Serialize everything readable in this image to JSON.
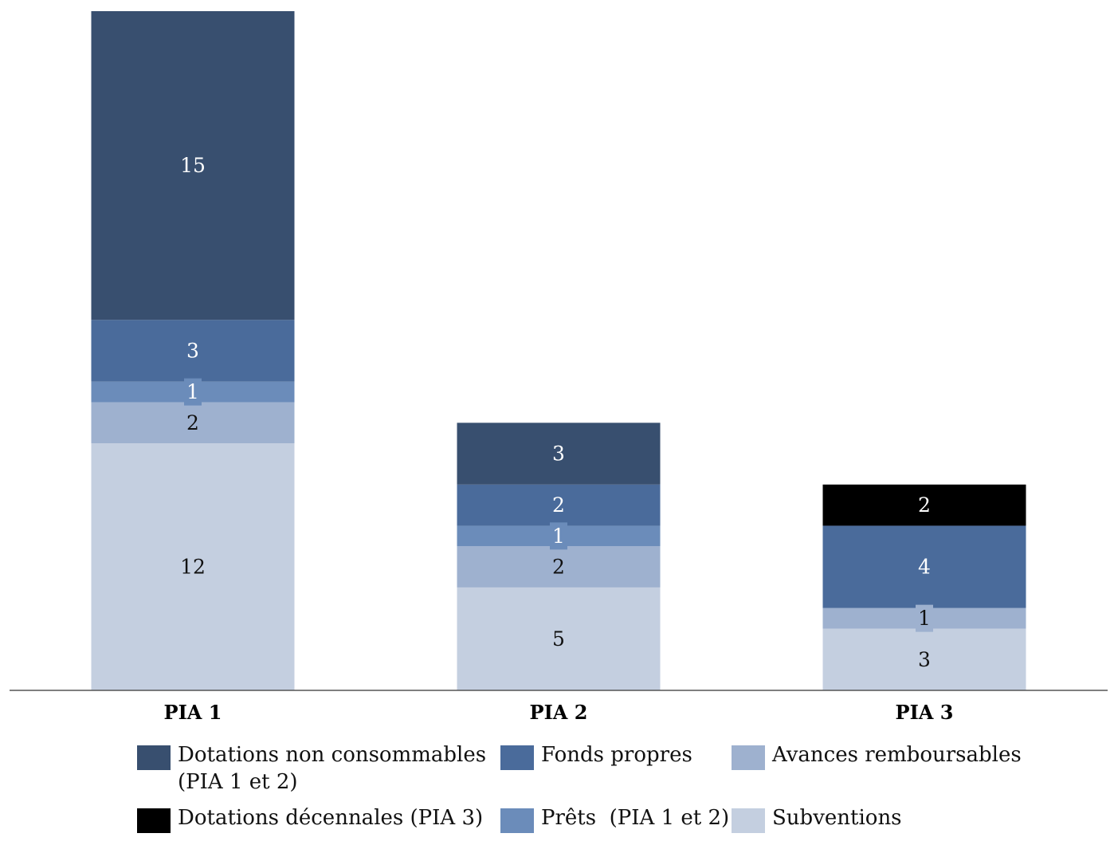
{
  "chart_data": {
    "type": "bar",
    "stacked": true,
    "categories": [
      "PIA 1",
      "PIA 2",
      "PIA 3"
    ],
    "series": [
      {
        "name": "Subventions",
        "color": "#c4cfe0",
        "label_color": "#111111",
        "values": [
          12,
          5,
          3
        ]
      },
      {
        "name": "Avances remboursables",
        "color": "#9eb1cf",
        "label_color": "#111111",
        "values": [
          2,
          2,
          1
        ]
      },
      {
        "name": "Prêts  (PIA 1 et 2)",
        "color": "#6b8cba",
        "label_color": "#ffffff",
        "values": [
          1,
          1,
          0
        ]
      },
      {
        "name": "Fonds propres",
        "color": "#4a6b9b",
        "label_color": "#ffffff",
        "values": [
          3,
          2,
          4
        ]
      },
      {
        "name": "Dotations non consommables (PIA 1 et 2)",
        "color": "#384f6f",
        "label_color": "#ffffff",
        "values": [
          15,
          3,
          0
        ]
      },
      {
        "name": "Dotations décennales (PIA 3)",
        "color": "#000000",
        "label_color": "#ffffff",
        "values": [
          0,
          0,
          2
        ]
      }
    ],
    "legend_position": "bottom",
    "legend_order": [
      "Dotations non consommables (PIA 1 et 2)",
      "Fonds propres",
      "Avances remboursables",
      "Dotations décennales (PIA 3)",
      "Prêts  (PIA 1 et 2)",
      "Subventions"
    ],
    "grid": false,
    "ylim": [
      0,
      33
    ]
  }
}
